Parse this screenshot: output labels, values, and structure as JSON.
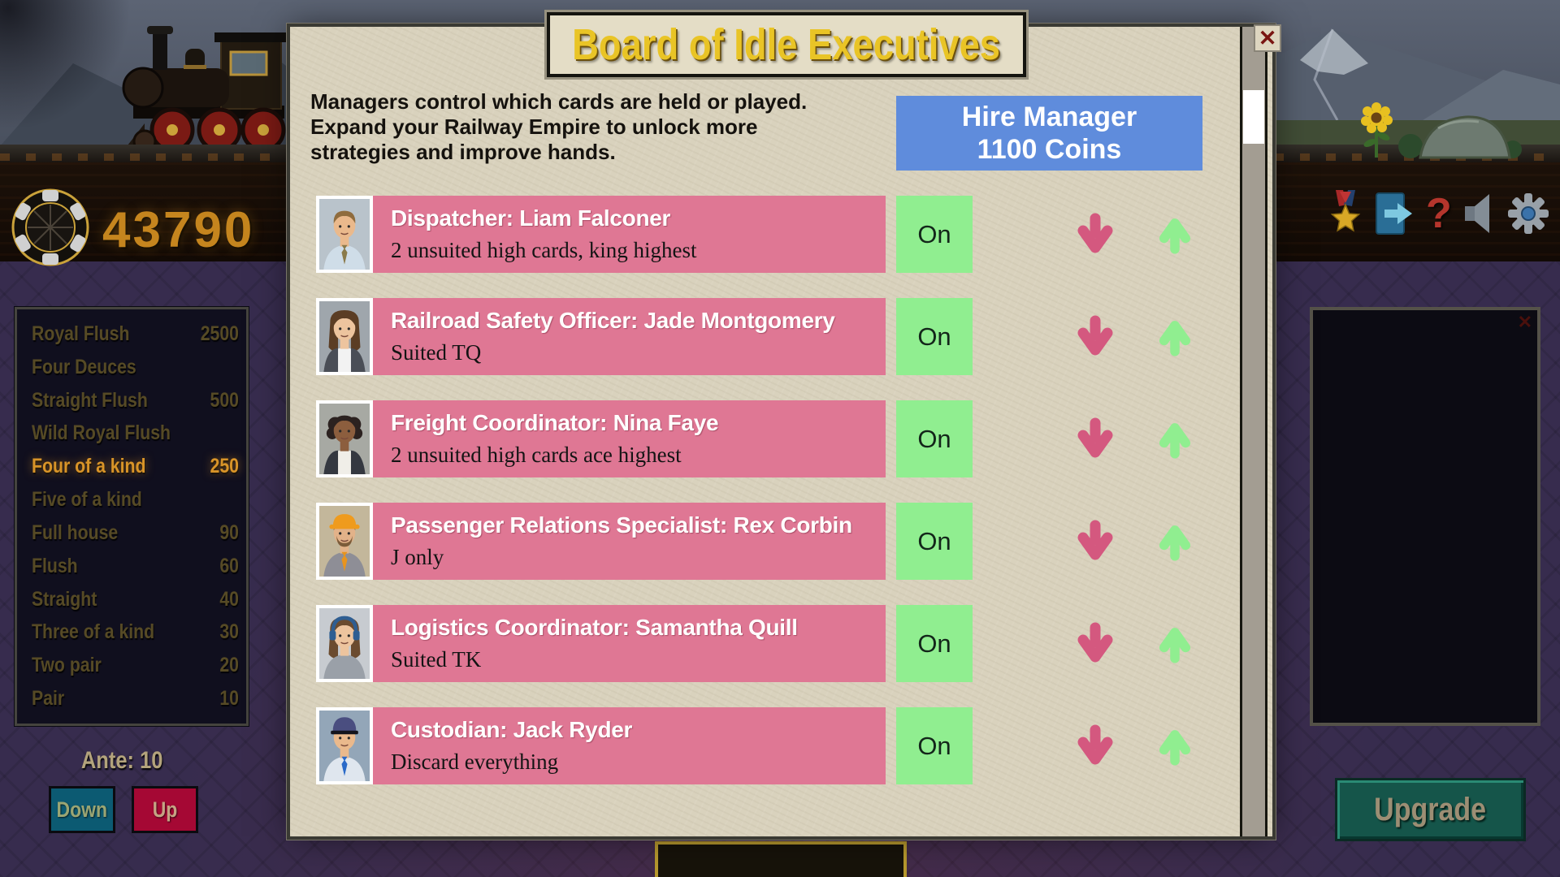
{
  "modal": {
    "title": "Board of Idle Executives",
    "description": "Managers control which cards are held or played.\nExpand your Railway Empire to unlock more\nstrategies and improve hands.",
    "hire": {
      "line1": "Hire Manager",
      "line2": "1100 Coins"
    },
    "close_glyph": "✕",
    "managers": [
      {
        "name": "Dispatcher: Liam Falconer",
        "strategy": "2 unsuited high cards, king highest",
        "state": "On",
        "avatar": {
          "bg": "#b9c3cb",
          "skin": "#eab98c",
          "hair": "#8f6c3e",
          "hairStyle": "short",
          "shirt": "#cfdde8",
          "accent": "#8a7a4a",
          "tie": true
        }
      },
      {
        "name": "Railroad Safety Officer: Jade Montgomery",
        "strategy": "Suited TQ",
        "state": "On",
        "avatar": {
          "bg": "#9fa6ac",
          "skin": "#edc49e",
          "hair": "#5b3d24",
          "hairStyle": "long",
          "shirt": "#f2f2f2",
          "accent": "#4a4e56",
          "vest": true
        }
      },
      {
        "name": "Freight Coordinator: Nina Faye",
        "strategy": "2 unsuited high cards ace highest",
        "state": "On",
        "avatar": {
          "bg": "#a7a9a3",
          "skin": "#8c5e3e",
          "hair": "#2c2220",
          "hairStyle": "curly",
          "shirt": "#f0eee8",
          "accent": "#343840",
          "vest": true
        }
      },
      {
        "name": "Passenger Relations Specialist: Rex Corbin",
        "strategy": "J only",
        "state": "On",
        "avatar": {
          "bg": "#c3b79b",
          "skin": "#e2b289",
          "hair": "#7c5c3a",
          "hairStyle": "short",
          "shirt": "#8e8e96",
          "accent": "#e8941e",
          "tie": true,
          "hat": "hard",
          "hatColor": "#ef9b1d",
          "beard": true
        }
      },
      {
        "name": "Logistics Coordinator: Samantha Quill",
        "strategy": "Suited TK",
        "state": "On",
        "avatar": {
          "bg": "#c7cbd0",
          "skin": "#edc49e",
          "hair": "#6b4b2f",
          "hairStyle": "long",
          "shirt": "#9aa0a8",
          "accent": "#e8e8ec",
          "headset": true,
          "headsetColor": "#2f5e92"
        }
      },
      {
        "name": "Custodian: Jack Ryder",
        "strategy": "Discard everything",
        "state": "On",
        "avatar": {
          "bg": "#93a6b8",
          "skin": "#eab98c",
          "hair": "#6a6a6a",
          "hairStyle": "short",
          "shirt": "#dfe6ee",
          "accent": "#2a6ac8",
          "tie": true,
          "hat": "cap",
          "hatColor": "#4a4e80"
        }
      }
    ]
  },
  "hud": {
    "coins": "43790",
    "help_glyph": "?",
    "icons": [
      "medal-icon",
      "exit-icon",
      "help-icon",
      "sound-icon",
      "settings-icon"
    ]
  },
  "paytable": {
    "rows": [
      {
        "hand": "Royal Flush",
        "value": "2500",
        "highlight": false
      },
      {
        "hand": "Four Deuces",
        "value": "",
        "highlight": false
      },
      {
        "hand": "Straight Flush",
        "value": "500",
        "highlight": false
      },
      {
        "hand": "Wild Royal Flush",
        "value": "",
        "highlight": false
      },
      {
        "hand": "Four of a kind",
        "value": "250",
        "highlight": true
      },
      {
        "hand": "Five of a kind",
        "value": "",
        "highlight": false
      },
      {
        "hand": "Full house",
        "value": "90",
        "highlight": false
      },
      {
        "hand": "Flush",
        "value": "60",
        "highlight": false
      },
      {
        "hand": "Straight",
        "value": "40",
        "highlight": false
      },
      {
        "hand": "Three of a kind",
        "value": "30",
        "highlight": false
      },
      {
        "hand": "Two pair",
        "value": "20",
        "highlight": false
      },
      {
        "hand": "Pair",
        "value": "10",
        "highlight": false
      }
    ],
    "ante_label": "Ante: 10",
    "down_label": "Down",
    "up_label": "Up"
  },
  "shop": {
    "close_glyph": "✕"
  },
  "upgrade_label": "Upgrade",
  "colors": {
    "row_pink": "#df7794",
    "state_green": "#90ee90",
    "hire_blue": "#5f8cdc",
    "title_gold": "#e9c426",
    "coin_amber": "#c5851e",
    "paytable_highlight": "#d89428",
    "ante_up_red": "#a50834",
    "ante_down_teal": "#0c5a72",
    "upgrade_teal": "#15554a",
    "arrow_down_pink": "#d4587f",
    "arrow_up_green": "#90ee90",
    "modal_paper": "#d9d2bd"
  }
}
